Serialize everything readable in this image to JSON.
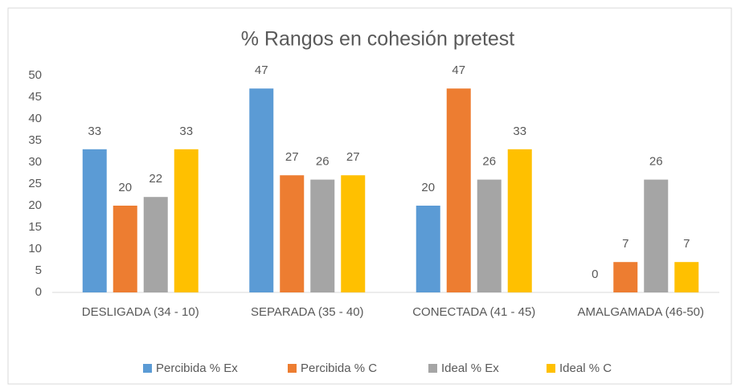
{
  "chart_data": {
    "type": "bar",
    "title": "% Rangos en cohesión pretest",
    "categories": [
      "DESLIGADA (34 - 10)",
      "SEPARADA (35 - 40)",
      "CONECTADA (41 - 45)",
      "AMALGAMADA (46-50)"
    ],
    "series": [
      {
        "name": "Percibida % Ex",
        "color": "#5b9bd5",
        "values": [
          33,
          47,
          20,
          0
        ]
      },
      {
        "name": "Percibida % C",
        "color": "#ed7d31",
        "values": [
          20,
          27,
          47,
          7
        ]
      },
      {
        "name": "Ideal % Ex",
        "color": "#a5a5a5",
        "values": [
          22,
          26,
          26,
          26
        ]
      },
      {
        "name": "Ideal % C",
        "color": "#ffc000",
        "values": [
          33,
          27,
          33,
          7
        ]
      }
    ],
    "ylim": [
      0,
      50
    ],
    "yticks": [
      0,
      5,
      10,
      15,
      20,
      25,
      30,
      35,
      40,
      45,
      50
    ],
    "grid": false,
    "legend": "bottom"
  }
}
